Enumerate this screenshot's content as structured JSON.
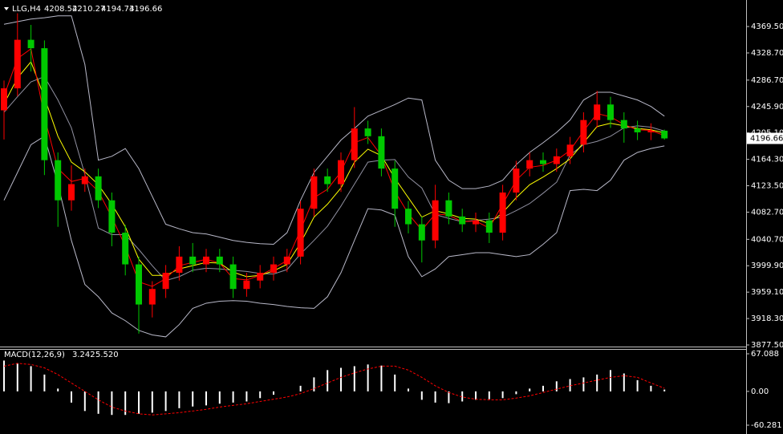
{
  "chart_data": [
    {
      "type": "candlestick",
      "symbol": "LLG,H4",
      "open": [
        4240,
        4274,
        4349,
        4336,
        4163,
        4101,
        4126,
        4138,
        4101,
        4051,
        4002,
        3940,
        3964,
        3989,
        4014,
        4002,
        4014,
        4002,
        3964,
        3977,
        3989,
        4002,
        4014,
        4088,
        4138,
        4126,
        4163,
        4212,
        4200,
        4150,
        4088,
        4064,
        4039,
        4101,
        4076,
        4064,
        4070,
        4051,
        4113,
        4150,
        4163,
        4157,
        4169,
        4187,
        4225,
        4249,
        4225,
        4212,
        4206,
        4208.52
      ],
      "high": [
        4286,
        4390,
        4372,
        4348,
        4175,
        4155,
        4150,
        4150,
        4113,
        4063,
        4014,
        3976,
        4001,
        4030,
        4035,
        4026,
        4026,
        4014,
        3989,
        4001,
        4014,
        4026,
        4100,
        4150,
        4150,
        4175,
        4245,
        4224,
        4212,
        4162,
        4100,
        4076,
        4125,
        4113,
        4088,
        4082,
        4082,
        4125,
        4162,
        4175,
        4175,
        4181,
        4199,
        4237,
        4270,
        4261,
        4237,
        4224,
        4220,
        4210.27
      ],
      "low": [
        4195,
        4262,
        4300,
        4140,
        4060,
        4085,
        4114,
        4089,
        4030,
        3985,
        3895,
        3920,
        3950,
        3977,
        3990,
        3990,
        3990,
        3950,
        3952,
        3965,
        3977,
        3990,
        4002,
        4076,
        4114,
        4114,
        4151,
        4188,
        4138,
        4060,
        4050,
        4005,
        4027,
        4064,
        4052,
        4052,
        4035,
        4039,
        4101,
        4138,
        4145,
        4145,
        4157,
        4175,
        4213,
        4213,
        4190,
        4194,
        4194,
        4194.73
      ],
      "close": [
        4274,
        4349,
        4336,
        4163,
        4101,
        4126,
        4138,
        4101,
        4051,
        4002,
        3940,
        3964,
        3989,
        4014,
        4002,
        4014,
        4002,
        3964,
        3977,
        3989,
        4002,
        4014,
        4088,
        4138,
        4126,
        4163,
        4212,
        4200,
        4150,
        4088,
        4064,
        4039,
        4101,
        4076,
        4064,
        4070,
        4051,
        4113,
        4150,
        4163,
        4157,
        4169,
        4187,
        4225,
        4249,
        4225,
        4212,
        4206,
        4208.52,
        4196.66
      ],
      "up_color": "#ff0000",
      "down_color": "#00c800",
      "overlays": [
        {
          "color": "#b8b8c8",
          "values": [
            4373,
            4377,
            4381,
            4383,
            4386,
            4386,
            4311,
            4163,
            4169,
            4181,
            4150,
            4107,
            4064,
            4057,
            4051,
            4049,
            4044,
            4039,
            4036,
            4034,
            4033,
            4051,
            4101,
            4144,
            4169,
            4194,
            4212,
            4231,
            4240,
            4249,
            4259,
            4256,
            4163,
            4132,
            4119,
            4119,
            4123,
            4132,
            4156,
            4175,
            4190,
            4206,
            4225,
            4256,
            4268,
            4268,
            4262,
            4256,
            4246,
            4231
          ]
        },
        {
          "color": "#9090a0",
          "values": [
            4237,
            4261,
            4284,
            4292,
            4256,
            4213,
            4141,
            4058,
            4048,
            4048,
            4025,
            4000,
            3977,
            3983,
            3993,
            3996,
            3995,
            3993,
            3991,
            3988,
            3987,
            3994,
            4018,
            4039,
            4061,
            4092,
            4126,
            4160,
            4163,
            4164,
            4137,
            4120,
            4079,
            4073,
            4068,
            4070,
            4072,
            4075,
            4085,
            4096,
            4112,
            4129,
            4171,
            4187,
            4192,
            4200,
            4213,
            4216,
            4214,
            4208
          ]
        },
        {
          "color": "#b8b8c8",
          "values": [
            4101,
            4144,
            4187,
            4200,
            4126,
            4039,
            3971,
            3952,
            3927,
            3915,
            3900,
            3893,
            3890,
            3909,
            3934,
            3942,
            3945,
            3946,
            3945,
            3942,
            3940,
            3937,
            3935,
            3934,
            3952,
            3989,
            4039,
            4088,
            4086,
            4078,
            4014,
            3983,
            3995,
            4014,
            4017,
            4020,
            4020,
            4017,
            4014,
            4017,
            4033,
            4051,
            4116,
            4118,
            4116,
            4132,
            4163,
            4175,
            4181,
            4185
          ]
        },
        {
          "color": "#ffff00",
          "values": [
            4250,
            4290,
            4315,
            4260,
            4200,
            4160,
            4145,
            4125,
            4095,
            4060,
            4010,
            3985,
            3985,
            3995,
            4000,
            4005,
            4004,
            3990,
            3983,
            3985,
            3992,
            4002,
            4035,
            4075,
            4095,
            4120,
            4160,
            4180,
            4170,
            4135,
            4105,
            4075,
            4085,
            4080,
            4073,
            4072,
            4065,
            4082,
            4105,
            4125,
            4137,
            4150,
            4165,
            4190,
            4215,
            4220,
            4216,
            4212,
            4210,
            4205
          ]
        },
        {
          "color": "#ff0000",
          "values": [
            4262,
            4320,
            4335,
            4230,
            4150,
            4130,
            4135,
            4115,
            4075,
            4030,
            3975,
            3968,
            3980,
            4000,
            4005,
            4010,
            4004,
            3980,
            3978,
            3985,
            3996,
            4008,
            4055,
            4105,
            4118,
            4145,
            4190,
            4198,
            4170,
            4115,
            4080,
            4055,
            4080,
            4078,
            4068,
            4069,
            4058,
            4095,
            4132,
            4152,
            4155,
            4163,
            4178,
            4208,
            4235,
            4230,
            4218,
            4210,
            4209,
            4201
          ]
        }
      ],
      "ylim": [
        3877.5,
        4408
      ],
      "yticks": [
        {
          "value": 4369.5,
          "label": "4369.50"
        },
        {
          "value": 4328.7,
          "label": "4328.70"
        },
        {
          "value": 4286.7,
          "label": "4286.70"
        },
        {
          "value": 4245.9,
          "label": "4245.90"
        },
        {
          "value": 4205.1,
          "label": "4205.10"
        },
        {
          "value": 4164.3,
          "label": "4164.30"
        },
        {
          "value": 4123.5,
          "label": "4123.50"
        },
        {
          "value": 4082.7,
          "label": "4082.70"
        },
        {
          "value": 4040.7,
          "label": "4040.70"
        },
        {
          "value": 3999.9,
          "label": "3999.90"
        },
        {
          "value": 3959.1,
          "label": "3959.10"
        },
        {
          "value": 3918.3,
          "label": "3918.30"
        },
        {
          "value": 3877.5,
          "label": "3877.50"
        }
      ]
    },
    {
      "type": "macd",
      "label": "MACD(12,26,9)",
      "series": [
        {
          "style": "histogram",
          "color": "#ffffff",
          "values": [
            55,
            50,
            45,
            30,
            5,
            -20,
            -35,
            -40,
            -42,
            -42,
            -40,
            -38,
            -35,
            -30,
            -27,
            -25,
            -22,
            -20,
            -18,
            -12,
            -6,
            0,
            10,
            25,
            38,
            42,
            45,
            48,
            46,
            30,
            5,
            -15,
            -20,
            -21,
            -18,
            -15,
            -14,
            -12,
            -5,
            5,
            10,
            18,
            22,
            25,
            30,
            38,
            32,
            20,
            10,
            3.242
          ]
        },
        {
          "style": "dashed",
          "color": "#ff0000",
          "values": [
            45,
            50,
            48,
            42,
            30,
            15,
            0,
            -15,
            -28,
            -35,
            -40,
            -42,
            -40,
            -38,
            -35,
            -32,
            -28,
            -25,
            -22,
            -18,
            -14,
            -10,
            -4,
            5,
            15,
            25,
            33,
            40,
            45,
            45,
            38,
            25,
            10,
            -2,
            -10,
            -14,
            -15,
            -15,
            -12,
            -8,
            -2,
            4,
            10,
            15,
            20,
            25,
            28,
            25,
            15,
            5.52
          ],
          "value_labels": {
            "49": "5.520"
          }
        }
      ],
      "ylim": [
        -60.281,
        67.088
      ],
      "yticks": [
        67.088,
        {
          "value": 0,
          "label": "0.00"
        },
        -60.281
      ]
    }
  ]
}
